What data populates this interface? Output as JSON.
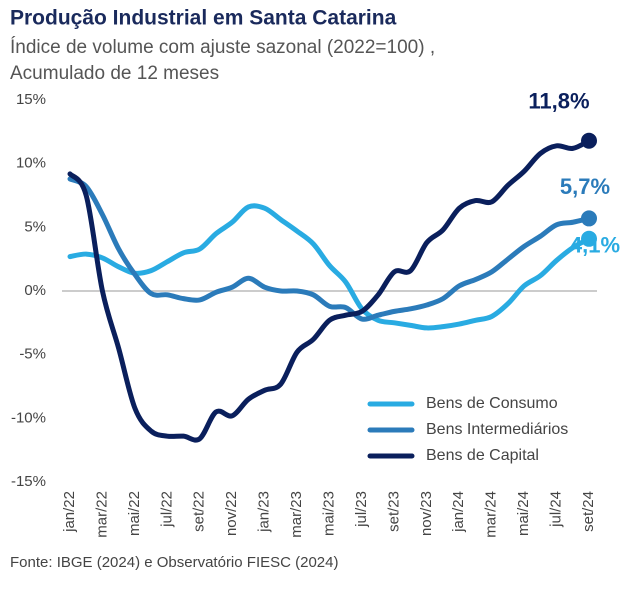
{
  "chart_data": {
    "type": "line",
    "title": "Produção Industrial em Santa Catarina",
    "subtitle": [
      "Índice de volume com ajuste sazonal (2022=100) ,",
      "Acumulado de 12 meses"
    ],
    "source": "Fonte: IBGE (2024) e Observatório FIESC (2024)",
    "categories": [
      "jan/22",
      null,
      "mar/22",
      null,
      "mai/22",
      null,
      "jul/22",
      null,
      "set/22",
      null,
      "nov/22",
      null,
      "jan/23",
      null,
      "mar/23",
      null,
      "mai/23",
      null,
      "jul/23",
      null,
      "set/23",
      null,
      "nov/23",
      null,
      "jan/24",
      null,
      "mar/24",
      null,
      "mai/24",
      null,
      "jul/24",
      null,
      "set/24"
    ],
    "series": [
      {
        "name": "Bens de Consumo",
        "color": "#29abe2",
        "values": [
          2.7,
          2.9,
          2.6,
          1.9,
          1.4,
          1.6,
          2.3,
          3.0,
          3.3,
          4.5,
          5.4,
          6.6,
          6.5,
          5.6,
          4.7,
          3.7,
          2.0,
          0.7,
          -1.4,
          -2.3,
          -2.5,
          -2.7,
          -2.9,
          -2.8,
          -2.6,
          -2.3,
          -2.0,
          -1.0,
          0.4,
          1.2,
          2.4,
          3.4,
          4.1
        ],
        "value_labels": [
          null,
          null,
          null,
          null,
          null,
          null,
          null,
          null,
          null,
          null,
          null,
          null,
          null,
          null,
          null,
          null,
          null,
          null,
          null,
          null,
          null,
          null,
          null,
          null,
          null,
          null,
          null,
          null,
          null,
          null,
          null,
          null,
          "4,1%"
        ]
      },
      {
        "name": "Bens Intermediários",
        "color": "#2b7bba",
        "values": [
          8.8,
          8.2,
          6.0,
          3.3,
          1.3,
          -0.2,
          -0.3,
          -0.6,
          -0.7,
          -0.1,
          0.3,
          1.0,
          0.3,
          0.0,
          0.0,
          -0.3,
          -1.2,
          -1.3,
          -2.2,
          -1.9,
          -1.6,
          -1.4,
          -1.1,
          -0.6,
          0.4,
          0.9,
          1.5,
          2.5,
          3.5,
          4.3,
          5.2,
          5.4,
          5.7
        ],
        "value_labels": [
          null,
          null,
          null,
          null,
          null,
          null,
          null,
          null,
          null,
          null,
          null,
          null,
          null,
          null,
          null,
          null,
          null,
          null,
          null,
          null,
          null,
          null,
          null,
          null,
          null,
          null,
          null,
          null,
          null,
          null,
          null,
          null,
          "5,7%"
        ]
      },
      {
        "name": "Bens de Capital",
        "color": "#0a1f5c",
        "values": [
          9.2,
          7.5,
          0.0,
          -4.5,
          -9.2,
          -11.0,
          -11.4,
          -11.4,
          -11.6,
          -9.5,
          -9.8,
          -8.5,
          -7.8,
          -7.3,
          -4.8,
          -3.8,
          -2.3,
          -1.9,
          -1.6,
          -0.3,
          1.5,
          1.6,
          3.8,
          4.8,
          6.5,
          7.1,
          7.0,
          8.3,
          9.4,
          10.8,
          11.4,
          11.2,
          11.8
        ],
        "value_labels": [
          null,
          null,
          null,
          null,
          null,
          null,
          null,
          null,
          null,
          null,
          null,
          null,
          null,
          null,
          null,
          null,
          null,
          null,
          null,
          null,
          null,
          null,
          null,
          null,
          null,
          null,
          null,
          null,
          null,
          null,
          null,
          null,
          "11,8%"
        ]
      }
    ],
    "ylim": [
      -15,
      15
    ],
    "yticks": [
      {
        "value": 15,
        "label": "15%"
      },
      {
        "value": 10,
        "label": "10%"
      },
      {
        "value": 5,
        "label": "5%"
      },
      {
        "value": 0,
        "label": "0%"
      },
      {
        "value": -5,
        "label": "-5%"
      },
      {
        "value": -10,
        "label": "-10%"
      },
      {
        "value": -15,
        "label": "-15%"
      }
    ],
    "zero_line": true,
    "legend": "lower right"
  }
}
